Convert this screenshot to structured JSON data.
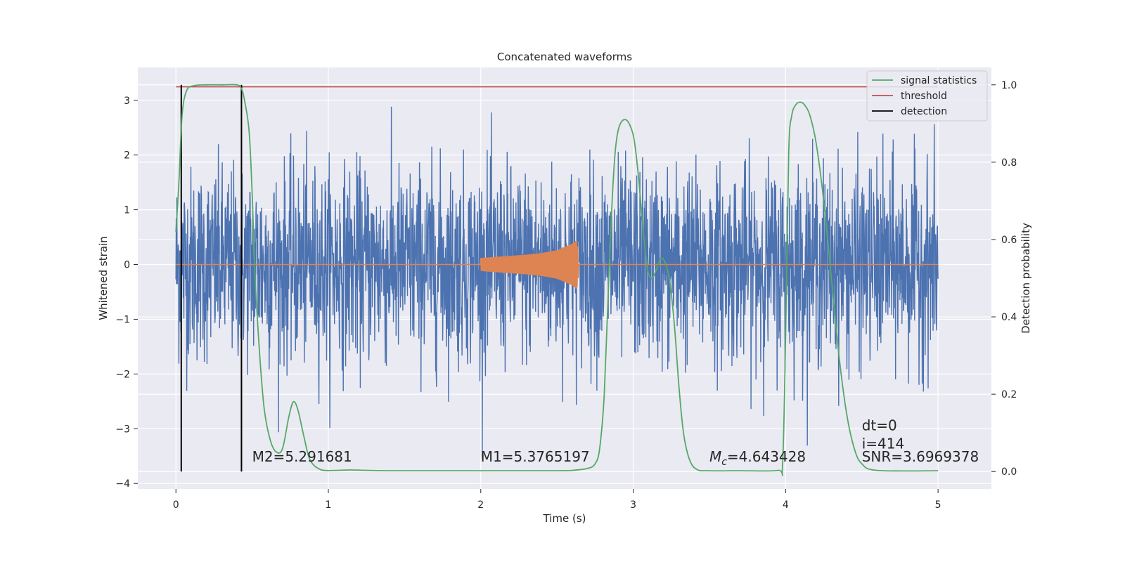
{
  "chart_data": {
    "type": "line",
    "title": "Concatenated waveforms",
    "xlabel": "Time (s)",
    "ylabel": "Whitened strain",
    "ylabel_right": "Detection probability",
    "xlim": [
      -0.25,
      5.35
    ],
    "ylim": [
      -4.1,
      3.6
    ],
    "ylim_right": [
      -0.045,
      1.045
    ],
    "x_ticks": [
      0,
      1,
      2,
      3,
      4,
      5
    ],
    "y_ticks": [
      -4,
      -3,
      -2,
      -1,
      0,
      1,
      2,
      3
    ],
    "y_ticks_right": [
      0.0,
      0.2,
      0.4,
      0.6,
      0.8,
      1.0
    ],
    "x_tick_labels": [
      "0",
      "1",
      "2",
      "3",
      "4",
      "5"
    ],
    "y_tick_labels": [
      "−4",
      "−3",
      "−2",
      "−1",
      "0",
      "1",
      "2",
      "3"
    ],
    "y_tick_labels_right": [
      "0.0",
      "0.2",
      "0.4",
      "0.6",
      "0.8",
      "1.0"
    ],
    "grid": true,
    "legend_position": "top-right",
    "background": "#EAEAF2",
    "noise_series": {
      "color": "#4C72B0",
      "x_range": [
        0,
        5
      ],
      "typical_amplitude": 1.6,
      "max": 3.45,
      "min": -3.75
    },
    "injected_signal": {
      "color": "#DD8452",
      "x": [
        0,
        2.0,
        2.1,
        2.2,
        2.3,
        2.4,
        2.5,
        2.6,
        2.63,
        2.65,
        5
      ],
      "amplitude": [
        0,
        0.12,
        0.14,
        0.16,
        0.18,
        0.21,
        0.26,
        0.38,
        0.45,
        0.02,
        0
      ]
    },
    "signal_statistics": {
      "name": "signal statistics",
      "color": "#55A868",
      "x": [
        0,
        0.02,
        0.04,
        0.07,
        0.12,
        0.2,
        0.3,
        0.4,
        0.43,
        0.45,
        0.48,
        0.5,
        0.52,
        0.55,
        0.58,
        0.62,
        0.66,
        0.7,
        0.74,
        0.77,
        0.8,
        0.84,
        0.88,
        0.95,
        1.05,
        1.15,
        1.4,
        2.0,
        2.5,
        2.6,
        2.7,
        2.75,
        2.78,
        2.81,
        2.84,
        2.87,
        2.9,
        2.95,
        3.0,
        3.03,
        3.06,
        3.09,
        3.12,
        3.15,
        3.18,
        3.21,
        3.24,
        3.27,
        3.3,
        3.33,
        3.37,
        3.42,
        3.5,
        3.7,
        3.95,
        3.98,
        4.0,
        4.02,
        4.04,
        4.07,
        4.1,
        4.13,
        4.16,
        4.2,
        4.25,
        4.3,
        4.35,
        4.4,
        4.45,
        4.5,
        4.6,
        5.0
      ],
      "values": [
        0.62,
        0.75,
        0.92,
        0.985,
        0.998,
        1.0,
        1.0,
        1.0,
        0.99,
        0.96,
        0.88,
        0.72,
        0.5,
        0.3,
        0.16,
        0.08,
        0.05,
        0.06,
        0.14,
        0.18,
        0.16,
        0.09,
        0.03,
        0.005,
        0.003,
        0.004,
        0.002,
        0.002,
        0.002,
        0.003,
        0.008,
        0.02,
        0.06,
        0.2,
        0.5,
        0.76,
        0.88,
        0.91,
        0.87,
        0.78,
        0.65,
        0.53,
        0.5,
        0.52,
        0.55,
        0.54,
        0.49,
        0.38,
        0.22,
        0.1,
        0.03,
        0.005,
        0.002,
        0.002,
        0.003,
        0.02,
        0.35,
        0.82,
        0.92,
        0.95,
        0.955,
        0.945,
        0.92,
        0.85,
        0.7,
        0.5,
        0.3,
        0.15,
        0.06,
        0.02,
        0.003,
        0.002
      ]
    },
    "threshold": {
      "name": "threshold",
      "color": "#C44E52",
      "value": 0.995,
      "x_range": [
        0,
        5
      ]
    },
    "detection": {
      "name": "detection",
      "color": "#000000",
      "x": [
        0.035,
        0.43
      ]
    },
    "legend": [
      "signal statistics",
      "threshold",
      "detection"
    ],
    "annotations": [
      {
        "text": "M2=5.291681",
        "x": 0.5,
        "y": -3.6
      },
      {
        "text": "M1=5.3765197",
        "x": 2.0,
        "y": -3.6
      },
      {
        "text_main": "M",
        "text_sub": "c",
        "text_rest": "=4.643428",
        "x": 3.5,
        "y": -3.6
      },
      {
        "text": "dt=0",
        "x": 4.5,
        "y": -3.03
      },
      {
        "text": "i=414",
        "x": 4.5,
        "y": -3.36
      },
      {
        "text": "SNR=3.6969378",
        "x": 4.5,
        "y": -3.6
      }
    ]
  }
}
